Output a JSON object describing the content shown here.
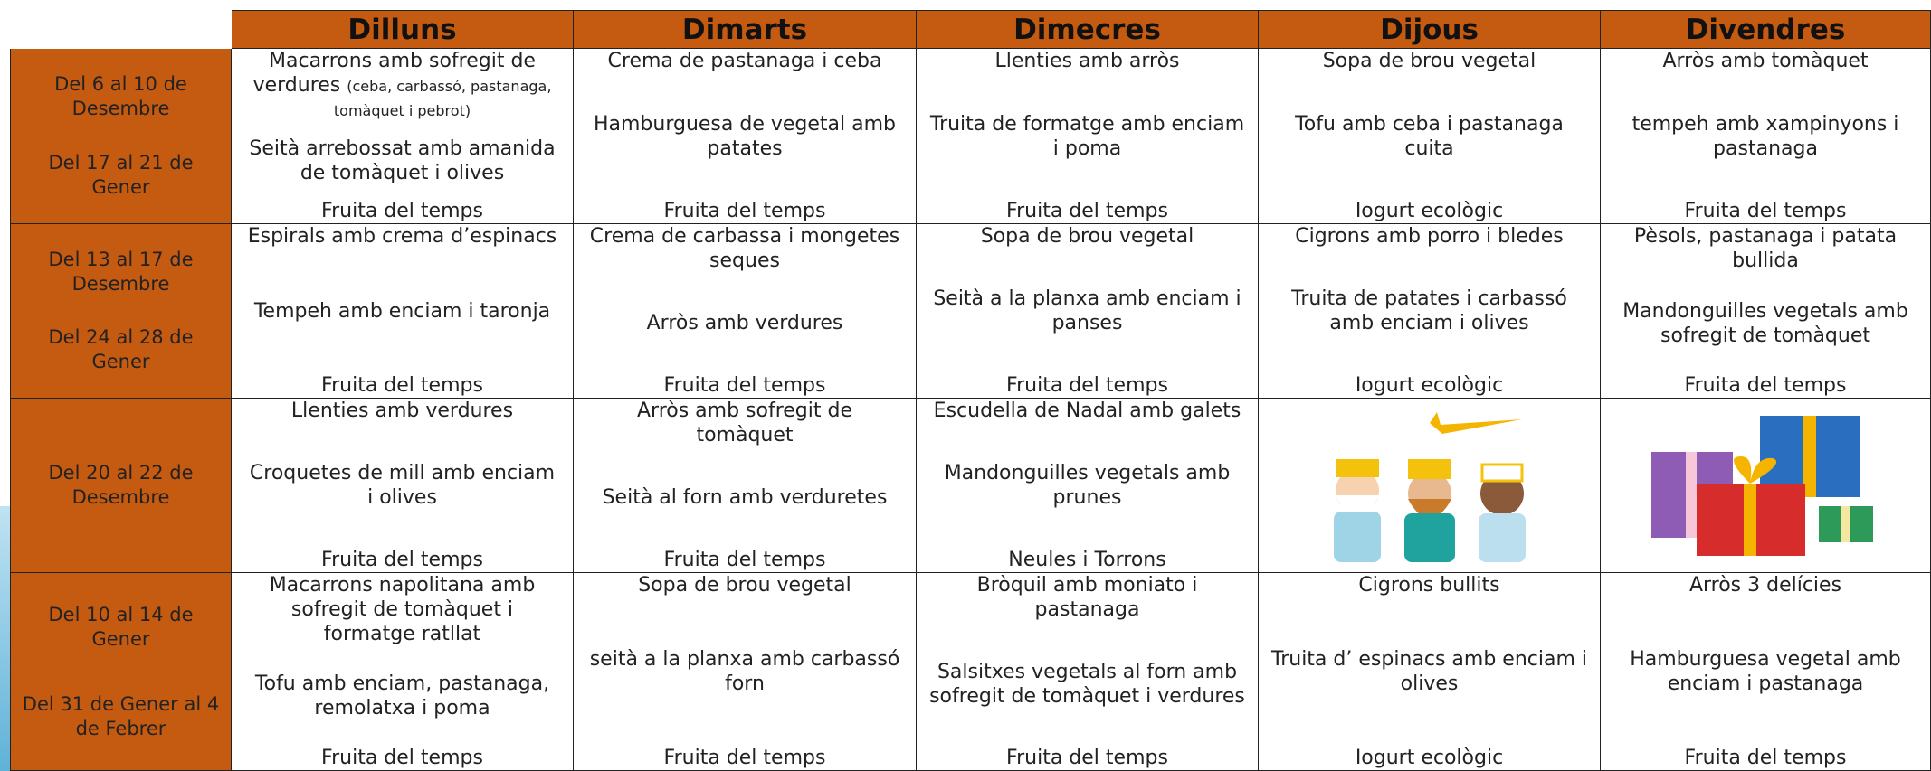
{
  "header": {
    "days": [
      "Dilluns",
      "Dimarts",
      "Dimecres",
      "Dijous",
      "Divendres"
    ]
  },
  "weeks": [
    {
      "dates": [
        "Del 6 al 10 de Desembre",
        "Del 17 al 21 de Gener"
      ],
      "menus": [
        {
          "dishes": [
            "Macarrons amb sofregit de verdures",
            "Seità arrebossat amb amanida de tomàquet i olives",
            "Fruita del temps"
          ],
          "note": "(ceba, carbassó, pastanaga, tomàquet i pebrot)"
        },
        {
          "dishes": [
            "Crema de pastanaga i ceba",
            "Hamburguesa de vegetal amb patates",
            "Fruita del temps"
          ]
        },
        {
          "dishes": [
            "Llenties amb arròs",
            "Truita de formatge amb enciam i poma",
            "Fruita del temps"
          ]
        },
        {
          "dishes": [
            "Sopa de brou vegetal",
            "Tofu amb ceba i pastanaga cuita",
            "Iogurt ecològic"
          ]
        },
        {
          "dishes": [
            "Arròs amb tomàquet",
            "tempeh amb xampinyons i pastanaga",
            "Fruita del temps"
          ]
        }
      ]
    },
    {
      "dates": [
        "Del 13 al 17 de Desembre",
        "Del 24 al 28 de Gener"
      ],
      "menus": [
        {
          "dishes": [
            "Espirals amb crema d’espinacs",
            "Tempeh amb enciam i taronja",
            "Fruita del temps"
          ]
        },
        {
          "dishes": [
            "Crema de carbassa i mongetes seques",
            "Arròs amb verdures",
            "Fruita del temps"
          ]
        },
        {
          "dishes": [
            "Sopa de brou vegetal",
            "Seità a la planxa amb enciam i panses",
            "Fruita del temps"
          ]
        },
        {
          "dishes": [
            "Cigrons amb porro i bledes",
            "Truita de patates i carbassó amb enciam i olives",
            "Iogurt ecològic"
          ]
        },
        {
          "dishes": [
            "Pèsols, pastanaga i patata bullida",
            "Mandonguilles vegetals amb sofregit de tomàquet",
            "Fruita del temps"
          ]
        }
      ]
    },
    {
      "dates": [
        "Del 20 al 22 de Desembre"
      ],
      "menus": [
        {
          "dishes": [
            "Llenties amb verdures",
            "Croquetes de mill amb enciam i olives",
            "Fruita del temps"
          ]
        },
        {
          "dishes": [
            "Arròs amb sofregit de tomàquet",
            "Seità al forn amb verduretes",
            "Fruita del temps"
          ]
        },
        {
          "dishes": [
            "Escudella de Nadal amb galets",
            "Mandonguilles vegetals amb prunes",
            "Neules i Torrons"
          ]
        }
      ]
    },
    {
      "dates": [
        "Del 10 al 14 de Gener",
        "Del 31 de Gener al 4 de Febrer"
      ],
      "menus": [
        {
          "dishes": [
            "Macarrons napolitana amb sofregit de tomàquet i formatge ratllat",
            "Tofu amb enciam, pastanaga, remolatxa i poma",
            "Fruita del temps"
          ]
        },
        {
          "dishes": [
            "Sopa de brou vegetal",
            "seità a la planxa amb carbassó forn",
            "Fruita del temps"
          ]
        },
        {
          "dishes": [
            "Bròquil amb moniato i pastanaga",
            "Salsitxes vegetals al forn amb sofregit de tomàquet i verdures",
            "Fruita del temps"
          ]
        },
        {
          "dishes": [
            "Cigrons bullits",
            "Truita d’ espinacs amb enciam i olives",
            "Iogurt ecològic"
          ]
        },
        {
          "dishes": [
            "Arròs 3 delícies",
            "Hamburguesa vegetal amb enciam i pastanaga",
            "Fruita del temps"
          ]
        }
      ]
    }
  ]
}
